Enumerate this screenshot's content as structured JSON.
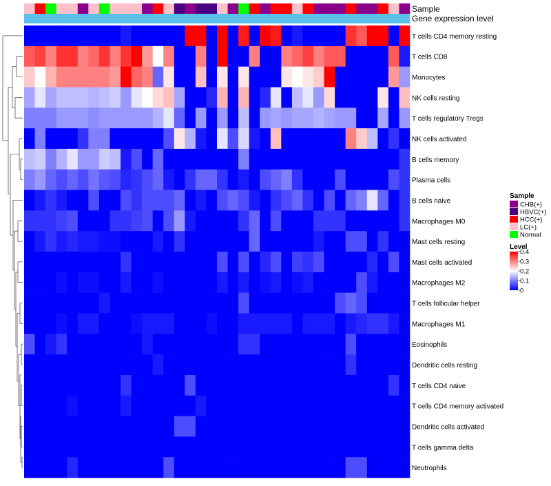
{
  "chart_data": {
    "type": "heatmap",
    "title": "",
    "annotation_rows": [
      "Sample",
      "Gene expression level"
    ],
    "samples": [
      "LC(+)",
      "HCC(+)",
      "Normal",
      "LC(+)",
      "LC(+)",
      "CHB(+)",
      "LC(+)",
      "Normal",
      "LC(+)",
      "LC(+)",
      "LC(+)",
      "CHB(+)",
      "HCC(+)",
      "LC(+)",
      "HBVC(+)",
      "CHB(+)",
      "HBVC(+)",
      "HBVC(+)",
      "LC(+)",
      "CHB(+)",
      "Normal",
      "HCC(+)",
      "CHB(+)",
      "HCC(+)",
      "HCC(+)",
      "LC(+)",
      "HCC(+)",
      "CHB(+)",
      "CHB(+)",
      "CHB(+)",
      "HCC(+)",
      "CHB(+)",
      "CHB(+)",
      "HCC(+)",
      "LC(+)",
      "CHB(+)"
    ],
    "sample_colors": {
      "CHB(+)": "#8b008b",
      "HBVC(+)": "#4b0082",
      "HCC(+)": "#ff0000",
      "LC(+)": "#ffc0cb",
      "Normal": "#00ff00"
    },
    "gene_expression_color": "#5bc0e8",
    "rows": [
      "T cells CD4 memory resting",
      "T cells CD8",
      "Monocytes",
      "NK cells resting",
      "T cells regulatory  Tregs",
      "NK cells activated",
      "B cells memory",
      "Plasma cells",
      "B cells naive",
      "Macrophages M0",
      "Mast cells resting",
      "Mast cells activated",
      "Macrophages M2",
      "T cells follicular helper",
      "Macrophages M1",
      "Eosinophils",
      "Dendritic cells resting",
      "T cells CD4 naive",
      "T cells CD4 memory activated",
      "Dendritic cells activated",
      "T cells gamma delta",
      "Neutrophils"
    ],
    "values": [
      [
        0,
        0,
        0,
        0,
        0,
        0,
        0,
        0,
        0,
        0.02,
        0,
        0,
        0,
        0,
        0,
        0.4,
        0.4,
        0,
        0.4,
        0,
        0.38,
        0,
        0.4,
        0.38,
        0,
        0.02,
        0,
        0,
        0,
        0,
        0.36,
        0.33,
        0.4,
        0.4,
        0,
        0.4
      ],
      [
        0.33,
        0.35,
        0.3,
        0.36,
        0.36,
        0.3,
        0.32,
        0.36,
        0.3,
        0.36,
        0.4,
        0.28,
        0.2,
        0.3,
        0,
        0,
        0.3,
        0,
        0.4,
        0,
        0,
        0.3,
        0,
        0,
        0.3,
        0.32,
        0.35,
        0.3,
        0.33,
        0.33,
        0,
        0,
        0,
        0,
        0.33,
        0.02
      ],
      [
        0.24,
        0.2,
        0.26,
        0.3,
        0.3,
        0.3,
        0.3,
        0.3,
        0.28,
        0.4,
        0.32,
        0.3,
        0.08,
        0.22,
        0,
        0,
        0.25,
        0,
        0.22,
        0,
        0.22,
        0,
        0,
        0,
        0.22,
        0.2,
        0.22,
        0.24,
        0.4,
        0,
        0,
        0,
        0,
        0,
        0.28,
        0.12
      ],
      [
        0.13,
        0.18,
        0.13,
        0.15,
        0.15,
        0.15,
        0.14,
        0.15,
        0.16,
        0.12,
        0.18,
        0.2,
        0.23,
        0.25,
        0.13,
        0,
        0,
        0.03,
        0.26,
        0,
        0.26,
        0,
        0.03,
        0.18,
        0,
        0.15,
        0.18,
        0.12,
        0.23,
        0,
        0,
        0,
        0,
        0.22,
        0,
        0.25
      ],
      [
        0.1,
        0.1,
        0.1,
        0.12,
        0.12,
        0.12,
        0.11,
        0.12,
        0.12,
        0.12,
        0.12,
        0.12,
        0.14,
        0.18,
        0.08,
        0,
        0.12,
        0,
        0.12,
        0,
        0.15,
        0,
        0.12,
        0.13,
        0.12,
        0.13,
        0.13,
        0.14,
        0.13,
        0.12,
        0.12,
        0,
        0,
        0.13,
        0,
        0.12
      ],
      [
        0,
        0.1,
        0,
        0,
        0,
        0.04,
        0.1,
        0.1,
        0,
        0,
        0,
        0,
        0,
        0.06,
        0.22,
        0.14,
        0.02,
        0,
        0.18,
        0.06,
        0.17,
        0.02,
        0,
        0.25,
        0,
        0,
        0,
        0,
        0,
        0,
        0.3,
        0.24,
        0.15,
        0,
        0.04,
        0
      ],
      [
        0.15,
        0.16,
        0.1,
        0.14,
        0.18,
        0.12,
        0.12,
        0.16,
        0.15,
        0.02,
        0.06,
        0,
        0.08,
        0,
        0,
        0,
        0,
        0,
        0,
        0,
        0.1,
        0,
        0,
        0,
        0,
        0,
        0,
        0,
        0,
        0,
        0,
        0,
        0,
        0,
        0,
        0.04
      ],
      [
        0.1,
        0.12,
        0.08,
        0.06,
        0.08,
        0.06,
        0.09,
        0.07,
        0.06,
        0.03,
        0.04,
        0.06,
        0.08,
        0.02,
        0,
        0.04,
        0.08,
        0.08,
        0.04,
        0,
        0.02,
        0,
        0.06,
        0.08,
        0.1,
        0.04,
        0,
        0,
        0,
        0.06,
        0,
        0,
        0,
        0,
        0.06,
        0.04
      ],
      [
        0,
        0.02,
        0.04,
        0.02,
        0,
        0,
        0.06,
        0,
        0,
        0.06,
        0.04,
        0.06,
        0.06,
        0.06,
        0.08,
        0,
        0.02,
        0,
        0.06,
        0.08,
        0.06,
        0.02,
        0,
        0.04,
        0.06,
        0.08,
        0.04,
        0,
        0.06,
        0,
        0.08,
        0.1,
        0.18,
        0.08,
        0,
        0.04
      ],
      [
        0.04,
        0.04,
        0.04,
        0.05,
        0.06,
        0,
        0,
        0,
        0.04,
        0.04,
        0.05,
        0.06,
        0,
        0.06,
        0.12,
        0.02,
        0,
        0,
        0,
        0,
        0.04,
        0.08,
        0,
        0.06,
        0,
        0,
        0,
        0.04,
        0.04,
        0.04,
        0,
        0,
        0,
        0,
        0,
        0.04
      ],
      [
        0,
        0.02,
        0.04,
        0.02,
        0.03,
        0.02,
        0.02,
        0.01,
        0.01,
        0,
        0,
        0,
        0.02,
        0,
        0.04,
        0,
        0,
        0,
        0,
        0,
        0,
        0.08,
        0,
        0,
        0,
        0,
        0,
        0.02,
        0,
        0,
        0.06,
        0.06,
        0,
        0.04,
        0,
        0
      ],
      [
        0,
        0,
        0,
        0,
        0,
        0,
        0,
        0,
        0,
        0.04,
        0,
        0,
        0,
        0,
        0,
        0,
        0,
        0,
        0.06,
        0,
        0.06,
        0,
        0.03,
        0.06,
        0,
        0.05,
        0.04,
        0.06,
        0,
        0,
        0,
        0,
        0.03,
        0,
        0.06,
        0
      ],
      [
        0,
        0,
        0,
        0.01,
        0,
        0.01,
        0.01,
        0,
        0,
        0.02,
        0,
        0,
        0.01,
        0,
        0,
        0,
        0,
        0,
        0.02,
        0,
        0.02,
        0,
        0.01,
        0.02,
        0,
        0.01,
        0.02,
        0,
        0,
        0,
        0,
        0.06,
        0.02,
        0,
        0,
        0
      ],
      [
        0,
        0,
        0,
        0,
        0,
        0,
        0,
        0.02,
        0,
        0,
        0,
        0,
        0,
        0,
        0,
        0,
        0,
        0,
        0,
        0,
        0.06,
        0,
        0,
        0,
        0,
        0,
        0,
        0,
        0,
        0.06,
        0.08,
        0.06,
        0,
        0,
        0,
        0
      ],
      [
        0,
        0,
        0,
        0.01,
        0,
        0.02,
        0.02,
        0,
        0,
        0,
        0.01,
        0.02,
        0.02,
        0.02,
        0,
        0,
        0,
        0.01,
        0,
        0,
        0.02,
        0.02,
        0.02,
        0.02,
        0.02,
        0,
        0.02,
        0.02,
        0.02,
        0,
        0.02,
        0.03,
        0.04,
        0.04,
        0.02,
        0
      ],
      [
        0.06,
        0,
        0.02,
        0.04,
        0,
        0,
        0,
        0,
        0,
        0,
        0,
        0.02,
        0,
        0,
        0,
        0,
        0,
        0,
        0,
        0,
        0.04,
        0.04,
        0,
        0,
        0,
        0,
        0,
        0,
        0,
        0,
        0.06,
        0,
        0,
        0,
        0,
        0
      ],
      [
        0,
        0,
        0,
        0,
        0,
        0,
        0,
        0,
        0,
        0,
        0,
        0,
        0.02,
        0,
        0,
        0,
        0,
        0,
        0,
        0,
        0,
        0,
        0,
        0,
        0,
        0,
        0,
        0,
        0,
        0,
        0.04,
        0,
        0,
        0,
        0,
        0
      ],
      [
        0,
        0,
        0,
        0,
        0,
        0,
        0,
        0,
        0,
        0.04,
        0,
        0,
        0,
        0,
        0,
        0.06,
        0,
        0,
        0,
        0,
        0,
        0,
        0,
        0,
        0,
        0,
        0,
        0,
        0,
        0,
        0,
        0,
        0,
        0,
        0.04,
        0
      ],
      [
        0,
        0,
        0,
        0,
        0.01,
        0,
        0,
        0,
        0,
        0.02,
        0,
        0,
        0,
        0,
        0,
        0,
        0.02,
        0,
        0,
        0,
        0,
        0,
        0,
        0,
        0,
        0,
        0,
        0,
        0,
        0,
        0,
        0,
        0,
        0,
        0,
        0
      ],
      [
        0,
        0,
        0,
        0,
        0,
        0,
        0,
        0,
        0,
        0,
        0,
        0,
        0,
        0,
        0.06,
        0.06,
        0,
        0,
        0,
        0,
        0,
        0,
        0,
        0,
        0,
        0,
        0,
        0,
        0,
        0,
        0,
        0,
        0,
        0,
        0,
        0
      ],
      [
        0,
        0,
        0,
        0,
        0,
        0,
        0,
        0,
        0,
        0,
        0,
        0,
        0,
        0,
        0,
        0,
        0,
        0,
        0,
        0,
        0,
        0,
        0,
        0,
        0,
        0,
        0,
        0,
        0,
        0,
        0,
        0,
        0,
        0,
        0,
        0
      ],
      [
        0,
        0,
        0,
        0,
        0.03,
        0,
        0,
        0,
        0,
        0,
        0,
        0,
        0,
        0.06,
        0,
        0,
        0,
        0,
        0,
        0,
        0,
        0,
        0,
        0,
        0,
        0,
        0,
        0,
        0,
        0,
        0.06,
        0.06,
        0,
        0,
        0,
        0
      ]
    ],
    "legend": {
      "sample_title": "Sample",
      "sample_items": [
        "CHB(+)",
        "HBVC(+)",
        "HCC(+)",
        "LC(+)",
        "Normal"
      ],
      "level_title": "Level",
      "level_ticks": [
        "0.4",
        "0.3",
        "0.2",
        "0.1",
        "0"
      ],
      "level_range": [
        0,
        0.4
      ]
    },
    "color_scale": {
      "low": "#0000ff",
      "mid": "#ffffff",
      "high": "#ff0000",
      "mid_value": 0.2
    }
  }
}
